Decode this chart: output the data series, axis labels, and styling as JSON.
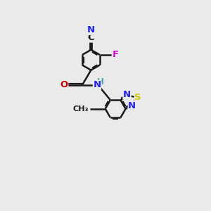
{
  "bg_color": "#eaeaea",
  "bond_color": "#1a1a1a",
  "bond_width": 1.8,
  "atom_colors": {
    "C": "#1a1a1a",
    "N": "#2020ff",
    "O": "#cc0000",
    "F": "#dd00dd",
    "S": "#cccc00",
    "H": "#44aaaa"
  },
  "font_size": 9.5,
  "dbo": 0.07
}
